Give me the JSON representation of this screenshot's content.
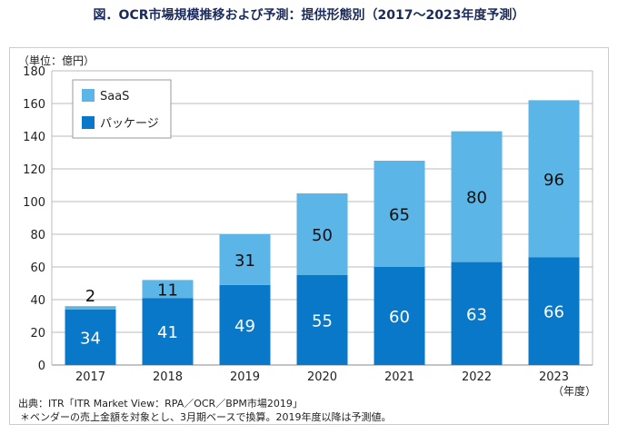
{
  "title": "図．OCR市場規模推移および予測：提供形態別（2017～2023年度予測）",
  "unit_label": "（単位：億円）",
  "x_unit_label": "（年度）",
  "source": "出典：ITR「ITR Market View：RPA／OCR／BPM市場2019」",
  "footnote": "＊ベンダーの売上金額を対象とし、3月期ベースで換算。2019年度以降は予測値。",
  "chart_data": {
    "type": "bar",
    "stacked": true,
    "categories": [
      "2017",
      "2018",
      "2019",
      "2020",
      "2021",
      "2022",
      "2023"
    ],
    "series": [
      {
        "name": "パッケージ",
        "values": [
          34,
          41,
          49,
          55,
          60,
          63,
          66
        ],
        "color": "#0a78c8"
      },
      {
        "name": "SaaS",
        "values": [
          2,
          11,
          31,
          50,
          65,
          80,
          96
        ],
        "color": "#5bb5e6"
      }
    ],
    "ylim": [
      0,
      180
    ],
    "yticks": [
      0,
      20,
      40,
      60,
      80,
      100,
      120,
      140,
      160,
      180
    ],
    "grid": true,
    "legend_placement": "top-left"
  }
}
